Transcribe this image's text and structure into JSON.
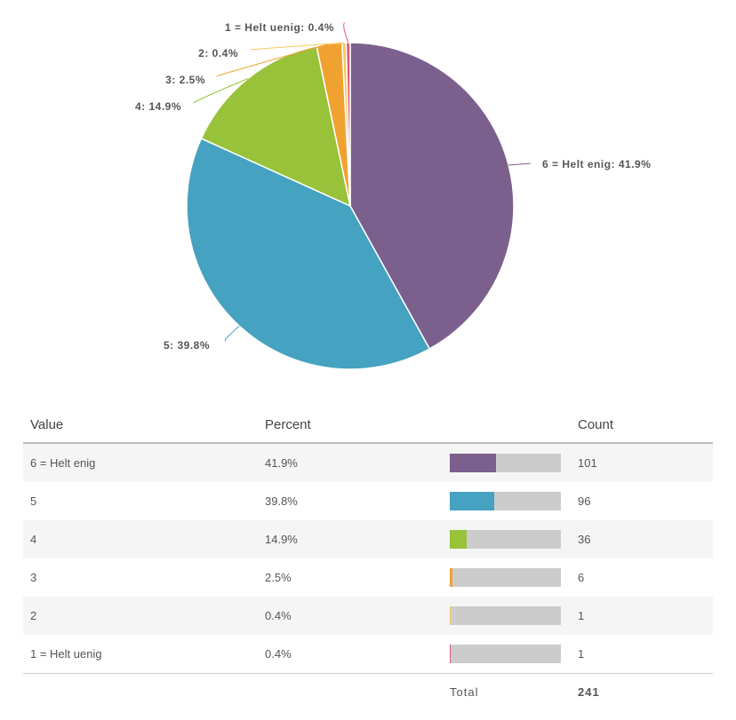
{
  "chart_data": {
    "type": "pie",
    "total": 241,
    "slices": [
      {
        "name": "6 = Helt enig",
        "label": "6 = Helt enig: 41.9%",
        "percent": 41.9,
        "count": 101,
        "color": "#7b5f8d"
      },
      {
        "name": "5",
        "label": "5: 39.8%",
        "percent": 39.8,
        "count": 96,
        "color": "#45a2c0"
      },
      {
        "name": "4",
        "label": "4: 14.9%",
        "percent": 14.9,
        "count": 36,
        "color": "#98c239"
      },
      {
        "name": "3",
        "label": "3: 2.5%",
        "percent": 2.5,
        "count": 6,
        "color": "#f0a231"
      },
      {
        "name": "2",
        "label": "2: 0.4%",
        "percent": 0.4,
        "count": 1,
        "color": "#f7c85c"
      },
      {
        "name": "1 = Helt uenig",
        "label": "1 = Helt uenig: 0.4%",
        "percent": 0.4,
        "count": 1,
        "color": "#e05a7a"
      }
    ]
  },
  "table": {
    "headers": {
      "value": "Value",
      "percent": "Percent",
      "count": "Count"
    },
    "rows": [
      {
        "value": "6 = Helt enig",
        "percent": "41.9%",
        "count": "101",
        "fraction": 0.419,
        "color": "#7b5f8d"
      },
      {
        "value": "5",
        "percent": "39.8%",
        "count": "96",
        "fraction": 0.398,
        "color": "#45a2c0"
      },
      {
        "value": "4",
        "percent": "14.9%",
        "count": "36",
        "fraction": 0.149,
        "color": "#98c239"
      },
      {
        "value": "3",
        "percent": "2.5%",
        "count": "6",
        "fraction": 0.025,
        "color": "#f0a231"
      },
      {
        "value": "2",
        "percent": "0.4%",
        "count": "1",
        "fraction": 0.004,
        "color": "#f7c85c"
      },
      {
        "value": "1 = Helt uenig",
        "percent": "0.4%",
        "count": "1",
        "fraction": 0.004,
        "color": "#e05a7a"
      }
    ],
    "total_label": "Total",
    "total_count": "241"
  }
}
